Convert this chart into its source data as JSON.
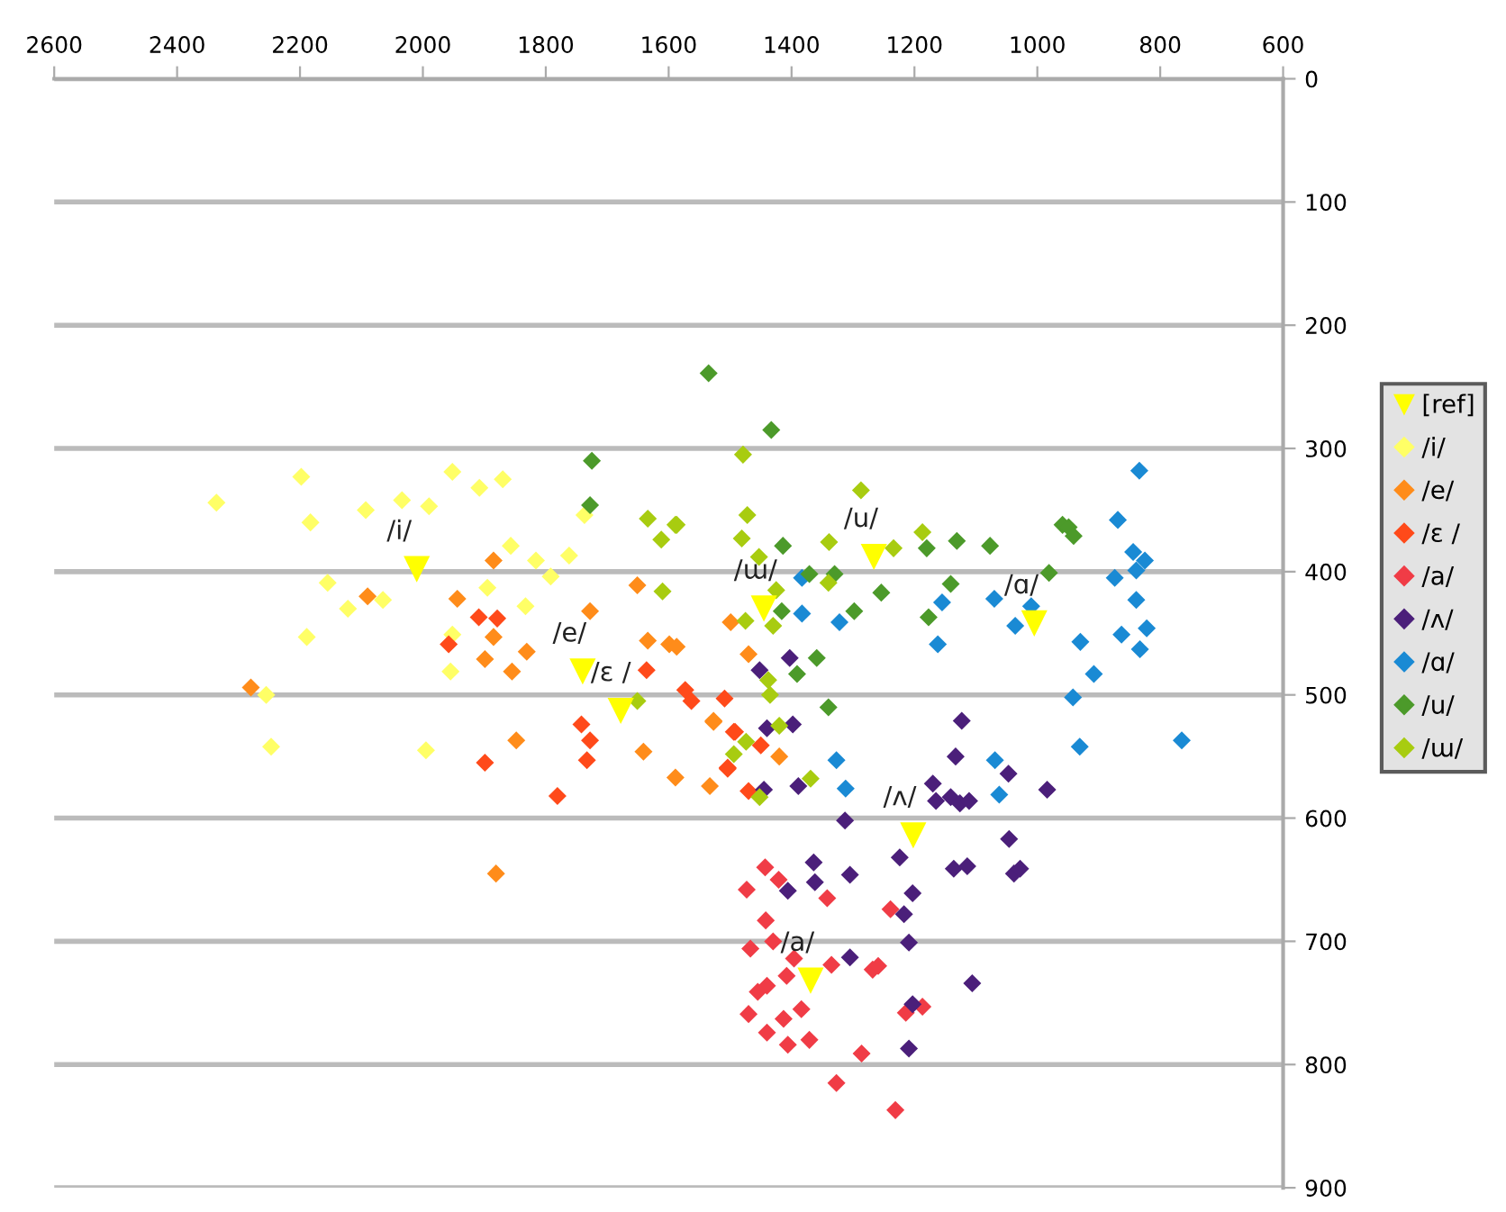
{
  "chart_data": {
    "type": "scatter",
    "xlim": [
      2600,
      600
    ],
    "xticks": [
      2600,
      2400,
      2200,
      2000,
      1800,
      1600,
      1400,
      1200,
      1000,
      800,
      600
    ],
    "ylim": [
      900,
      0
    ],
    "yticks": [
      0,
      100,
      200,
      300,
      400,
      500,
      600,
      700,
      800,
      900
    ],
    "grid": "y",
    "legend": "right",
    "marker": "diamond",
    "series": [
      {
        "name": "[ref]",
        "color": "#ffff00",
        "marker": "triangle",
        "x": [
          2010,
          1740,
          1678,
          1369,
          1202,
          1005,
          1266,
          1445
        ],
        "values": [
          398,
          481,
          513,
          732,
          614,
          442,
          388,
          430
        ],
        "value_labels": [
          "/i/",
          "/e/",
          "/ɛ /",
          "/a/",
          "/ʌ/",
          "/ɑ/",
          "/u/",
          "/ɯ/"
        ]
      },
      {
        "name": "/i/",
        "color": "#ffff66",
        "x": [
          2336,
          2198,
          2183,
          2093,
          2034,
          1990,
          1952,
          1908,
          1870,
          1857,
          1816,
          1792,
          1762,
          1737,
          1895,
          1833,
          2065,
          2122,
          2155,
          2189,
          1955,
          1952,
          2255,
          2247,
          1995
        ],
        "values": [
          344,
          323,
          360,
          350,
          342,
          347,
          319,
          332,
          325,
          379,
          391,
          404,
          387,
          354,
          413,
          428,
          423,
          430,
          409,
          453,
          481,
          451,
          500,
          542,
          545
        ]
      },
      {
        "name": "/e/",
        "color": "#ff8c1a",
        "x": [
          1885,
          2090,
          1944,
          1728,
          1651,
          1885,
          1634,
          1599,
          1831,
          1899,
          1855,
          2280,
          1848,
          1641,
          1589,
          1881,
          1533,
          1527,
          1587,
          1470,
          1527,
          1420,
          1499
        ],
        "values": [
          391,
          420,
          422,
          432,
          411,
          453,
          456,
          459,
          465,
          471,
          481,
          494,
          537,
          546,
          567,
          645,
          574,
          522,
          461,
          467,
          521,
          550,
          441
        ]
      },
      {
        "name": "/ɛ /",
        "color": "#ff4a1a",
        "x": [
          1909,
          1879,
          1958,
          1742,
          1728,
          1733,
          1899,
          1781,
          1636,
          1504,
          1492,
          1573,
          1563,
          1509,
          1494,
          1504,
          1450,
          1470
        ],
        "values": [
          437,
          438,
          459,
          524,
          537,
          553,
          555,
          582,
          480,
          560,
          530,
          496,
          505,
          503,
          530,
          559,
          541,
          578
        ]
      },
      {
        "name": "/a/",
        "color": "#f03c46",
        "x": [
          1443,
          1473,
          1421,
          1342,
          1442,
          1430,
          1467,
          1396,
          1335,
          1268,
          1259,
          1408,
          1440,
          1455,
          1470,
          1413,
          1384,
          1440,
          1406,
          1371,
          1286,
          1327,
          1231,
          1239,
          1214,
          1187
        ],
        "values": [
          640,
          658,
          650,
          665,
          683,
          700,
          706,
          714,
          719,
          723,
          720,
          728,
          736,
          741,
          759,
          763,
          755,
          774,
          784,
          780,
          791,
          815,
          837,
          674,
          758,
          753
        ]
      },
      {
        "name": "/ʌ/",
        "color": "#4b1f7a",
        "x": [
          1403,
          1452,
          1440,
          1398,
          1445,
          1389,
          1313,
          1123,
          1133,
          1047,
          984,
          1165,
          1141,
          1126,
          1111,
          1170,
          1046,
          1136,
          1114,
          1038,
          1028,
          1224,
          1203,
          1217,
          1209,
          1305,
          1106,
          1209,
          1364,
          1362,
          1305,
          1406,
          1203
        ],
        "values": [
          470,
          480,
          527,
          524,
          577,
          574,
          602,
          521,
          550,
          564,
          577,
          586,
          583,
          588,
          586,
          572,
          617,
          641,
          639,
          645,
          641,
          632,
          661,
          678,
          701,
          713,
          734,
          787,
          636,
          652,
          646,
          659,
          751
        ]
      },
      {
        "name": "/ɑ/",
        "color": "#1a8ad4",
        "x": [
          1383,
          1383,
          1322,
          1162,
          1155,
          1070,
          1036,
          1010,
          930,
          908,
          942,
          931,
          869,
          834,
          844,
          825,
          839,
          874,
          839,
          822,
          863,
          833,
          765,
          1327,
          1312,
          1069,
          1062
        ],
        "values": [
          405,
          434,
          441,
          459,
          425,
          422,
          444,
          428,
          457,
          483,
          502,
          542,
          358,
          318,
          384,
          391,
          399,
          405,
          423,
          446,
          451,
          463,
          537,
          553,
          576,
          553,
          581
        ]
      },
      {
        "name": "/u/",
        "color": "#4c9a2a",
        "x": [
          1433,
          1414,
          1371,
          1330,
          1416,
          1359,
          1391,
          1340,
          1298,
          1254,
          1180,
          1131,
          1077,
          1141,
          1177,
          981,
          959,
          949,
          941,
          1535,
          1725,
          1728
        ],
        "values": [
          285,
          379,
          402,
          402,
          432,
          470,
          483,
          510,
          432,
          417,
          381,
          375,
          379,
          410,
          437,
          401,
          362,
          364,
          371,
          239,
          310,
          346
        ]
      },
      {
        "name": "/ɯ/",
        "color": "#a8cc10",
        "x": [
          1479,
          1587,
          1472,
          1481,
          1453,
          1425,
          1430,
          1475,
          1438,
          1435,
          1420,
          1474,
          1494,
          1369,
          1452,
          1339,
          1340,
          1287,
          1234,
          1187,
          1634,
          1589,
          1612,
          1610,
          1651
        ],
        "values": [
          305,
          362,
          354,
          373,
          388,
          415,
          444,
          440,
          488,
          500,
          525,
          538,
          548,
          568,
          583,
          376,
          409,
          334,
          381,
          368,
          357,
          362,
          374,
          416,
          505
        ]
      }
    ]
  }
}
